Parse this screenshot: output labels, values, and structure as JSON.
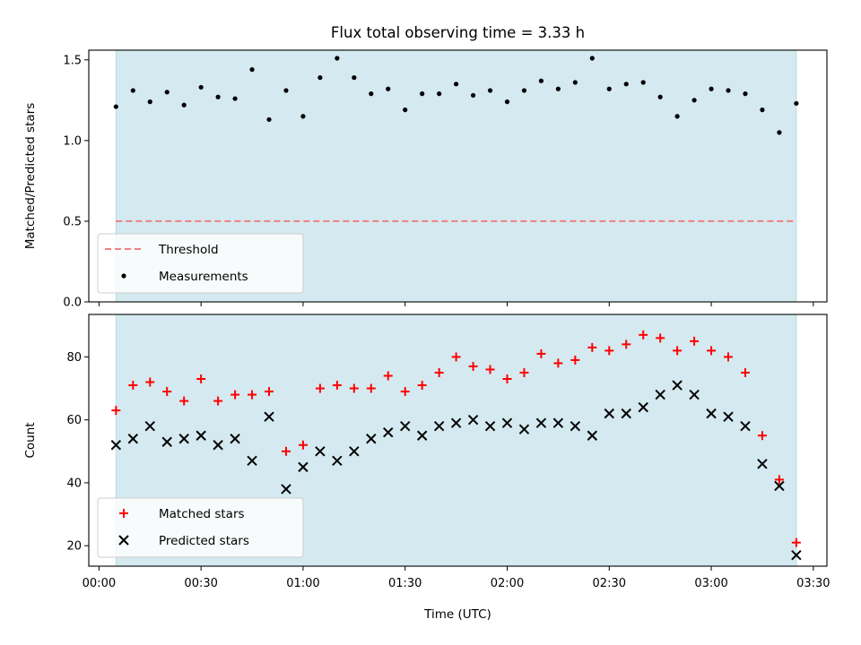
{
  "chart_data": {
    "title": "Flux total observing time = 3.33 h",
    "xlabel": "Time (UTC)",
    "x_tick_labels": [
      "00:00",
      "00:30",
      "01:00",
      "01:30",
      "02:00",
      "02:30",
      "03:00",
      "03:30"
    ],
    "x_ticks": [
      "00:00",
      "00:30",
      "01:00",
      "01:30",
      "02:00",
      "02:30",
      "03:00",
      "03:30"
    ],
    "xlim": [
      "23:57",
      "03:34"
    ],
    "shaded_span": {
      "from": "00:05",
      "to": "03:25",
      "color": "#d4eaf0"
    },
    "panels": [
      {
        "type": "scatter",
        "ylabel": "Matched/Predicted stars",
        "ylim": [
          0,
          1.56
        ],
        "yticks": [
          "0.0",
          "0.5",
          "1.0",
          "1.5"
        ],
        "legend_position": "lower-left",
        "threshold": {
          "name": "Threshold",
          "value": 0.5,
          "color": "#f08080"
        },
        "series": [
          {
            "name": "Measurements",
            "marker": "dot",
            "color": "#000000",
            "x": [
              "00:05",
              "00:10",
              "00:15",
              "00:20",
              "00:25",
              "00:30",
              "00:35",
              "00:40",
              "00:45",
              "00:50",
              "00:55",
              "01:00",
              "01:05",
              "01:10",
              "01:15",
              "01:20",
              "01:25",
              "01:30",
              "01:35",
              "01:40",
              "01:45",
              "01:50",
              "01:55",
              "02:00",
              "02:05",
              "02:10",
              "02:15",
              "02:20",
              "02:25",
              "02:30",
              "02:35",
              "02:40",
              "02:45",
              "02:50",
              "02:55",
              "03:00",
              "03:05",
              "03:10",
              "03:15",
              "03:20",
              "03:25"
            ],
            "values": [
              1.21,
              1.31,
              1.24,
              1.3,
              1.22,
              1.33,
              1.27,
              1.26,
              1.44,
              1.13,
              1.31,
              1.15,
              1.39,
              1.51,
              1.39,
              1.29,
              1.32,
              1.19,
              1.29,
              1.29,
              1.35,
              1.28,
              1.31,
              1.24,
              1.31,
              1.37,
              1.32,
              1.36,
              1.51,
              1.32,
              1.35,
              1.36,
              1.27,
              1.15,
              1.25,
              1.32,
              1.31,
              1.29,
              1.19,
              1.05,
              1.23
            ]
          }
        ]
      },
      {
        "type": "scatter",
        "ylabel": "Count",
        "ylim": [
          13.5,
          93.5
        ],
        "yticks": [
          "20",
          "40",
          "60",
          "80"
        ],
        "legend_position": "lower-left",
        "series": [
          {
            "name": "Matched stars",
            "marker": "plus",
            "color": "#ff0000",
            "x": [
              "00:05",
              "00:10",
              "00:15",
              "00:20",
              "00:25",
              "00:30",
              "00:35",
              "00:40",
              "00:45",
              "00:50",
              "00:55",
              "01:00",
              "01:05",
              "01:10",
              "01:15",
              "01:20",
              "01:25",
              "01:30",
              "01:35",
              "01:40",
              "01:45",
              "01:50",
              "01:55",
              "02:00",
              "02:05",
              "02:10",
              "02:15",
              "02:20",
              "02:25",
              "02:30",
              "02:35",
              "02:40",
              "02:45",
              "02:50",
              "02:55",
              "03:00",
              "03:05",
              "03:10",
              "03:15",
              "03:20",
              "03:25"
            ],
            "values": [
              63,
              71,
              72,
              69,
              66,
              73,
              66,
              68,
              68,
              69,
              50,
              52,
              70,
              71,
              70,
              70,
              74,
              69,
              71,
              75,
              80,
              77,
              76,
              73,
              75,
              81,
              78,
              79,
              83,
              82,
              84,
              87,
              86,
              82,
              85,
              82,
              80,
              75,
              55,
              41,
              21
            ]
          },
          {
            "name": "Predicted stars",
            "marker": "x",
            "color": "#000000",
            "x": [
              "00:05",
              "00:10",
              "00:15",
              "00:20",
              "00:25",
              "00:30",
              "00:35",
              "00:40",
              "00:45",
              "00:50",
              "00:55",
              "01:00",
              "01:05",
              "01:10",
              "01:15",
              "01:20",
              "01:25",
              "01:30",
              "01:35",
              "01:40",
              "01:45",
              "01:50",
              "01:55",
              "02:00",
              "02:05",
              "02:10",
              "02:15",
              "02:20",
              "02:25",
              "02:30",
              "02:35",
              "02:40",
              "02:45",
              "02:50",
              "02:55",
              "03:00",
              "03:05",
              "03:10",
              "03:15",
              "03:20",
              "03:25"
            ],
            "values": [
              52,
              54,
              58,
              53,
              54,
              55,
              52,
              54,
              47,
              61,
              38,
              45,
              50,
              47,
              50,
              54,
              56,
              58,
              55,
              58,
              59,
              60,
              58,
              59,
              57,
              59,
              59,
              58,
              55,
              62,
              62,
              64,
              68,
              71,
              68,
              62,
              61,
              58,
              46,
              39,
              17
            ]
          }
        ]
      }
    ]
  }
}
